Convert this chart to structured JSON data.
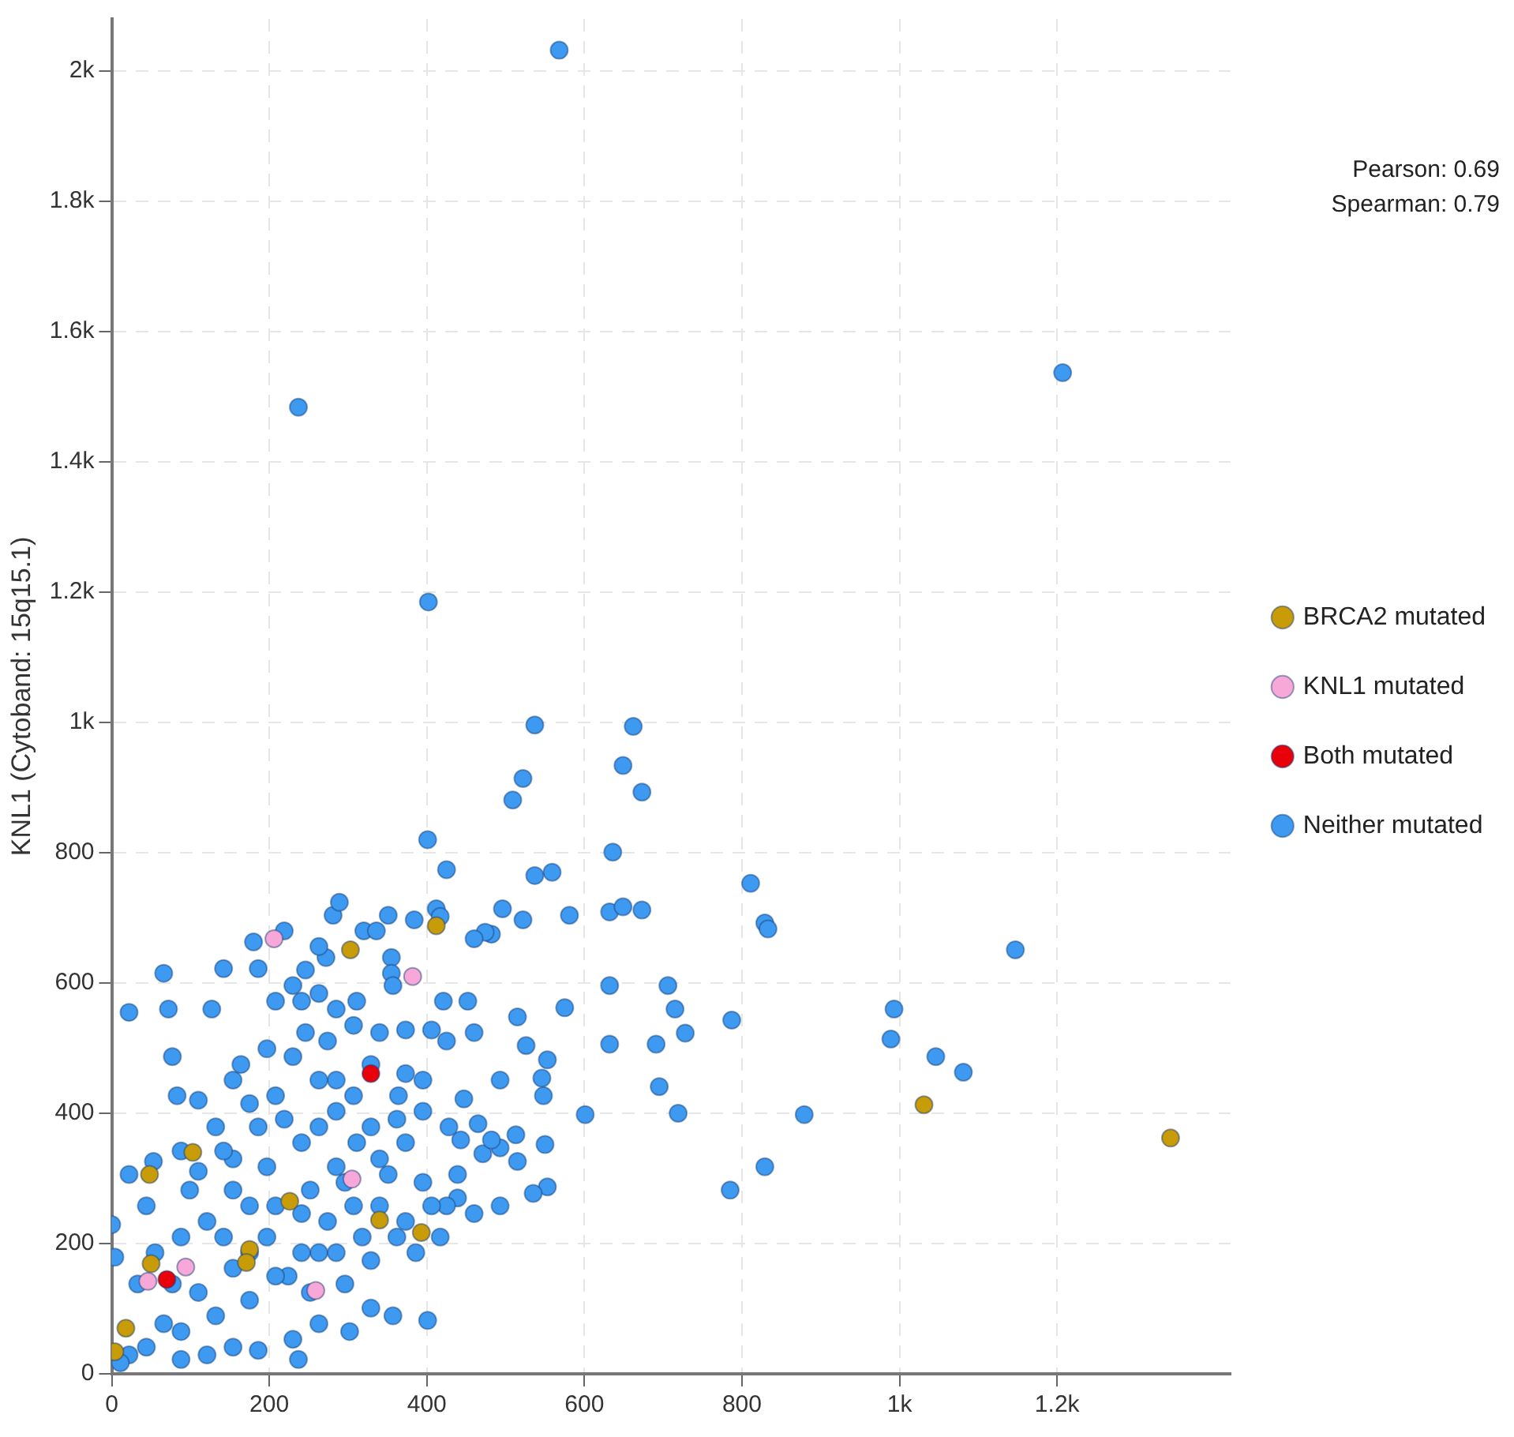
{
  "chart_data": {
    "type": "scatter",
    "ylabel": "KNL1 (Cytoband: 15q15.1)",
    "xlim": [
      0,
      1420
    ],
    "ylim": [
      0,
      2080
    ],
    "xticks": [
      0,
      200,
      400,
      600,
      800,
      {
        "value": 1000,
        "label": "1k"
      },
      {
        "value": 1200,
        "label": "1.2k"
      }
    ],
    "yticks": [
      0,
      200,
      400,
      600,
      800,
      {
        "value": 1000,
        "label": "1k"
      },
      {
        "value": 1200,
        "label": "1.2k"
      },
      {
        "value": 1400,
        "label": "1.4k"
      },
      {
        "value": 1600,
        "label": "1.6k"
      },
      {
        "value": 1800,
        "label": "1.8k"
      },
      {
        "value": 2000,
        "label": "2k"
      }
    ],
    "grid": true,
    "legend": "right",
    "marker": "circle",
    "annotations": [
      "Pearson: 0.69",
      "Spearman: 0.79"
    ],
    "series": [
      {
        "name": "BRCA2 mutated",
        "color": "#c89b08",
        "x": [
          303,
          103,
          48,
          50,
          175,
          171,
          340,
          393,
          226,
          4,
          18,
          1031,
          1344,
          412
        ],
        "values": [
          651,
          340,
          306,
          169,
          191,
          171,
          236,
          217,
          265,
          34,
          70,
          413,
          362,
          688
        ]
      },
      {
        "name": "KNL1 mutated",
        "color": "#f7a8d8",
        "x": [
          206,
          382,
          305,
          94,
          46,
          259
        ],
        "values": [
          668,
          610,
          299,
          164,
          142,
          128
        ]
      },
      {
        "name": "Both mutated",
        "color": "#e8000b",
        "x": [
          70,
          329
        ],
        "values": [
          145,
          461
        ]
      },
      {
        "name": "Neither mutated",
        "color": "#3d9af0",
        "x": [
          568,
          237,
          402,
          1207,
          537,
          662,
          649,
          673,
          522,
          509,
          401,
          425,
          559,
          537,
          811,
          636,
          829,
          833,
          673,
          632,
          649,
          522,
          581,
          482,
          474,
          496,
          412,
          417,
          384,
          706,
          715,
          728,
          691,
          787,
          719,
          695,
          879,
          829,
          785,
          993,
          989,
          1046,
          1081,
          1147,
          632,
          632,
          601,
          553,
          575,
          515,
          526,
          546,
          548,
          550,
          553,
          535,
          493,
          471,
          465,
          447,
          439,
          425,
          401,
          443,
          493,
          460,
          452,
          460,
          425,
          373,
          406,
          373,
          364,
          421,
          355,
          355,
          357,
          320,
          281,
          289,
          351,
          336,
          272,
          263,
          246,
          219,
          180,
          186,
          142,
          66,
          22,
          72,
          127,
          77,
          83,
          110,
          175,
          154,
          208,
          241,
          285,
          329,
          395,
          246,
          311,
          0,
          4,
          44,
          22,
          53,
          110,
          154,
          197,
          252,
          307,
          351,
          373,
          395,
          439,
          482,
          513,
          515,
          493,
          460,
          417,
          386,
          362,
          329,
          296,
          263,
          224,
          175,
          132,
          88,
          44,
          22,
          11,
          66,
          110,
          154,
          197,
          241,
          296,
          340,
          311,
          263,
          219,
          186,
          154,
          121,
          88,
          55,
          33,
          77,
          175,
          208,
          241,
          274,
          318,
          263,
          230,
          186,
          237,
          329,
          357,
          302,
          154,
          121,
          88,
          132,
          285,
          329,
          362,
          395,
          307,
          263,
          230,
          197,
          164,
          274,
          340,
          307,
          285,
          263,
          230,
          208,
          241,
          285,
          142,
          88,
          99,
          142,
          175,
          208,
          252,
          285,
          340,
          373,
          406,
          428
        ],
        "values": [
          2032,
          1484,
          1185,
          1537,
          996,
          994,
          934,
          893,
          914,
          881,
          820,
          774,
          770,
          765,
          753,
          801,
          692,
          683,
          712,
          709,
          717,
          697,
          704,
          675,
          678,
          714,
          714,
          702,
          697,
          596,
          560,
          523,
          506,
          543,
          400,
          441,
          398,
          318,
          282,
          560,
          514,
          487,
          463,
          651,
          596,
          506,
          398,
          482,
          562,
          548,
          504,
          454,
          427,
          352,
          287,
          277,
          347,
          338,
          384,
          422,
          270,
          258,
          82,
          359,
          451,
          668,
          572,
          524,
          511,
          528,
          528,
          461,
          427,
          572,
          639,
          615,
          596,
          680,
          704,
          724,
          704,
          680,
          639,
          656,
          620,
          680,
          663,
          622,
          622,
          615,
          555,
          560,
          560,
          487,
          427,
          420,
          415,
          451,
          572,
          572,
          451,
          475,
          451,
          524,
          572,
          229,
          179,
          258,
          306,
          326,
          311,
          330,
          318,
          282,
          258,
          306,
          355,
          294,
          306,
          359,
          367,
          326,
          258,
          246,
          210,
          186,
          210,
          174,
          138,
          186,
          150,
          113,
          89,
          65,
          41,
          29,
          17,
          77,
          125,
          162,
          210,
          246,
          294,
          330,
          355,
          379,
          391,
          379,
          282,
          234,
          210,
          186,
          138,
          138,
          258,
          258,
          186,
          234,
          210,
          77,
          53,
          36,
          22,
          101,
          89,
          65,
          41,
          29,
          22,
          379,
          403,
          379,
          391,
          403,
          427,
          451,
          487,
          499,
          475,
          511,
          524,
          535,
          560,
          584,
          596,
          427,
          355,
          318,
          342,
          342,
          282,
          210,
          186,
          150,
          125,
          186,
          258,
          234,
          258,
          379
        ]
      }
    ]
  }
}
